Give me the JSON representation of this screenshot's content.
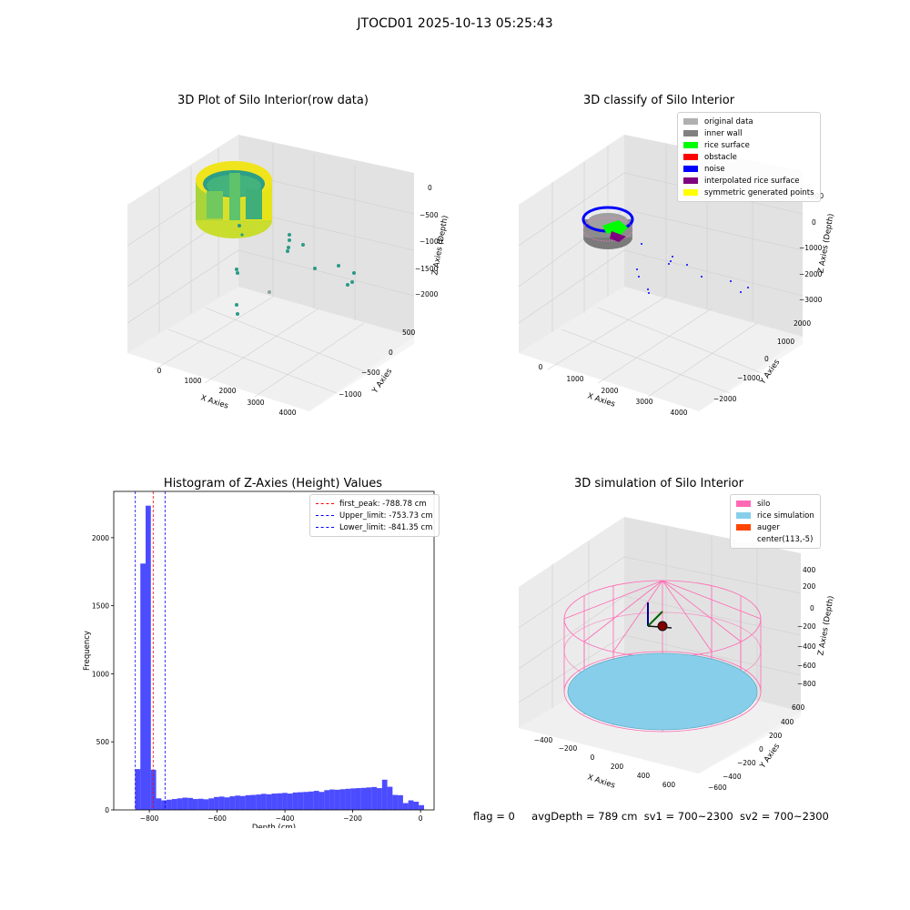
{
  "suptitle": "JTOCD01 2025-10-13 05:25:43",
  "panels": {
    "raw": {
      "title": "3D Plot of Silo Interior(row data)",
      "xlabel": "X Axies",
      "ylabel": "Y Axies",
      "zlabel": "Z Axies (Depth)",
      "xticks": [
        "0",
        "1000",
        "2000",
        "3000",
        "4000"
      ],
      "yticks": [
        "500",
        "0",
        "−500",
        "−1000"
      ],
      "zticks": [
        "0",
        "−500",
        "−1000",
        "−1500",
        "−2000"
      ]
    },
    "classify": {
      "title": "3D classify of Silo Interior",
      "xlabel": "X Axies",
      "ylabel": "Y Axies",
      "zlabel": "Z Axies (Depth)",
      "xticks": [
        "0",
        "1000",
        "2000",
        "3000",
        "4000"
      ],
      "yticks": [
        "2000",
        "1000",
        "0",
        "−1000",
        "−2000"
      ],
      "zticks": [
        "1000",
        "0",
        "−1000",
        "−2000",
        "−3000"
      ],
      "legend": [
        {
          "label": "original data",
          "color": "#b0b0b0"
        },
        {
          "label": "inner wall",
          "color": "#808080"
        },
        {
          "label": "rice surface",
          "color": "#00ff00"
        },
        {
          "label": "obstacle",
          "color": "#ff0000"
        },
        {
          "label": "noise",
          "color": "#0000ff"
        },
        {
          "label": "interpolated rice surface",
          "color": "#800080"
        },
        {
          "label": "symmetric generated points",
          "color": "#ffff00"
        }
      ]
    },
    "simulation": {
      "title": "3D simulation of Silo Interior",
      "xlabel": "X Axies",
      "ylabel": "Y Axies",
      "zlabel": "Z Axies (Depth)",
      "xticks": [
        "−400",
        "−200",
        "0",
        "200",
        "400",
        "600"
      ],
      "yticks": [
        "600",
        "400",
        "200",
        "0",
        "−200",
        "−400",
        "−600"
      ],
      "zticks": [
        "400",
        "200",
        "0",
        "−200",
        "−400",
        "−600",
        "−800"
      ],
      "legend": [
        {
          "label": "silo",
          "color": "#ff69b4"
        },
        {
          "label": "rice simulation",
          "color": "#87ceeb"
        },
        {
          "label": "auger",
          "color": "#ff4500"
        },
        {
          "label": "center(113,-5)",
          "color": "#ffffff"
        }
      ]
    }
  },
  "status": {
    "flag": "flag = 0",
    "avg": "avgDepth = 789 cm",
    "sv1": "sv1 = 700~2300",
    "sv2": "sv2 = 700~2300"
  },
  "chart_data": {
    "type": "bar",
    "title": "Histogram of Z-Axies (Height) Values",
    "xlabel": "Depth (cm)",
    "ylabel": "Frequency",
    "xlim": [
      -905,
      40
    ],
    "ylim": [
      0,
      2340
    ],
    "xticks": [
      -800,
      -600,
      -400,
      -200,
      0
    ],
    "yticks": [
      0,
      500,
      1000,
      1500,
      2000
    ],
    "bar_color": "#0000ff",
    "bin_width": 15.5,
    "bin_starts": [
      -842,
      -826.5,
      -811,
      -795.5,
      -780,
      -764.5,
      -749,
      -733.5,
      -718,
      -702.5,
      -687,
      -671.5,
      -656,
      -640.5,
      -625,
      -609.5,
      -594,
      -578.5,
      -563,
      -547.5,
      -532,
      -516.5,
      -501,
      -485.5,
      -470,
      -454.5,
      -439,
      -423.5,
      -408,
      -392.5,
      -377,
      -361.5,
      -346,
      -330.5,
      -315,
      -299.5,
      -284,
      -268.5,
      -253,
      -237.5,
      -222,
      -206.5,
      -191,
      -175.5,
      -160,
      -144.5,
      -129,
      -113.5,
      -98,
      -82.5,
      -67,
      -51.5,
      -36,
      -20.5,
      -5
    ],
    "values": [
      300,
      1810,
      2235,
      295,
      85,
      70,
      75,
      80,
      85,
      90,
      88,
      80,
      82,
      78,
      85,
      95,
      98,
      92,
      100,
      105,
      102,
      108,
      110,
      113,
      118,
      115,
      120,
      122,
      125,
      120,
      128,
      130,
      132,
      135,
      140,
      132,
      145,
      150,
      148,
      152,
      155,
      158,
      160,
      162,
      165,
      168,
      160,
      222,
      170,
      110,
      108,
      50,
      70,
      60,
      35
    ],
    "vlines": [
      {
        "label": "first_peak: -788.78 cm",
        "x": -788.78,
        "color": "#ff0000"
      },
      {
        "label": "Upper_limit: -753.73 cm",
        "x": -753.73,
        "color": "#0000ff"
      },
      {
        "label": "Lower_limit: -841.35 cm",
        "x": -841.35,
        "color": "#0000ff"
      }
    ],
    "legend_position": "top-right"
  }
}
